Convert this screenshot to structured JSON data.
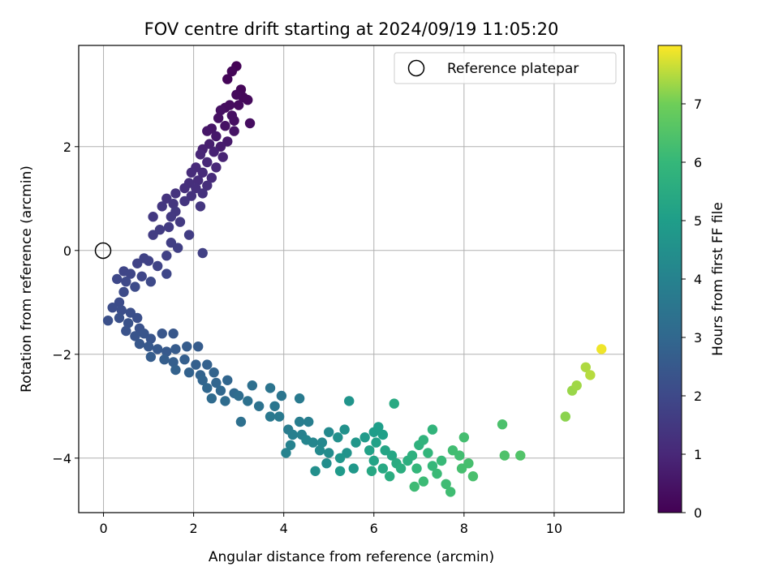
{
  "chart_data": {
    "type": "scatter",
    "title": "FOV centre drift starting at 2024/09/19 11:05:20",
    "xlabel": "Angular distance from reference (arcmin)",
    "ylabel": "Rotation from reference (arcmin)",
    "xlim": [
      -0.55,
      11.55
    ],
    "ylim": [
      -5.05,
      3.95
    ],
    "xticks": [
      0,
      2,
      4,
      6,
      8,
      10
    ],
    "yticks": [
      -4,
      -2,
      0,
      2
    ],
    "grid": true,
    "legend": {
      "position": "top-right",
      "entries": [
        "Reference platepar"
      ]
    },
    "reference_point": {
      "x": 0,
      "y": 0,
      "label": "Reference platepar"
    },
    "colorbar": {
      "label": "Hours from first FF file",
      "colormap": "viridis",
      "range": [
        0,
        8
      ],
      "ticks": [
        0,
        1,
        2,
        3,
        4,
        5,
        6,
        7
      ]
    },
    "points": [
      [
        2.95,
        3.55,
        0.05
      ],
      [
        2.75,
        3.3,
        0.1
      ],
      [
        2.85,
        3.45,
        0.12
      ],
      [
        3.05,
        3.1,
        0.15
      ],
      [
        3.1,
        2.95,
        0.18
      ],
      [
        3.2,
        2.9,
        0.2
      ],
      [
        2.95,
        3.0,
        0.22
      ],
      [
        3.0,
        2.8,
        0.25
      ],
      [
        2.8,
        2.8,
        0.28
      ],
      [
        2.7,
        2.75,
        0.3
      ],
      [
        3.25,
        2.45,
        0.32
      ],
      [
        2.9,
        2.5,
        0.35
      ],
      [
        2.85,
        2.6,
        0.38
      ],
      [
        2.6,
        2.7,
        0.4
      ],
      [
        2.55,
        2.55,
        0.42
      ],
      [
        2.7,
        2.4,
        0.45
      ],
      [
        2.9,
        2.3,
        0.48
      ],
      [
        2.4,
        2.35,
        0.5
      ],
      [
        2.3,
        2.3,
        0.55
      ],
      [
        2.5,
        2.2,
        0.6
      ],
      [
        2.75,
        2.1,
        0.65
      ],
      [
        2.6,
        2.0,
        0.7
      ],
      [
        2.35,
        2.05,
        0.75
      ],
      [
        2.2,
        1.95,
        0.8
      ],
      [
        2.45,
        1.9,
        0.85
      ],
      [
        2.65,
        1.8,
        0.9
      ],
      [
        2.15,
        1.85,
        0.95
      ],
      [
        2.3,
        1.7,
        1.0
      ],
      [
        2.5,
        1.6,
        1.02
      ],
      [
        2.05,
        1.6,
        1.05
      ],
      [
        2.2,
        1.5,
        1.08
      ],
      [
        2.4,
        1.4,
        1.1
      ],
      [
        1.95,
        1.5,
        1.12
      ],
      [
        2.1,
        1.35,
        1.15
      ],
      [
        2.3,
        1.25,
        1.18
      ],
      [
        1.9,
        1.3,
        1.2
      ],
      [
        2.05,
        1.2,
        1.22
      ],
      [
        1.8,
        1.2,
        1.25
      ],
      [
        2.2,
        1.1,
        1.28
      ],
      [
        1.95,
        1.05,
        1.3
      ],
      [
        1.6,
        1.1,
        1.32
      ],
      [
        1.4,
        1.0,
        1.35
      ],
      [
        1.55,
        0.9,
        1.38
      ],
      [
        1.8,
        0.95,
        1.4
      ],
      [
        2.15,
        0.85,
        1.42
      ],
      [
        1.3,
        0.85,
        1.45
      ],
      [
        1.6,
        0.75,
        1.48
      ],
      [
        1.5,
        0.65,
        1.5
      ],
      [
        1.1,
        0.65,
        1.52
      ],
      [
        1.7,
        0.55,
        1.55
      ],
      [
        1.45,
        0.45,
        1.58
      ],
      [
        1.25,
        0.4,
        1.6
      ],
      [
        1.1,
        0.3,
        1.62
      ],
      [
        1.9,
        0.3,
        1.65
      ],
      [
        1.5,
        0.15,
        1.68
      ],
      [
        1.65,
        0.05,
        1.7
      ],
      [
        2.2,
        -0.05,
        1.72
      ],
      [
        1.4,
        -0.1,
        1.75
      ],
      [
        0.9,
        -0.15,
        1.78
      ],
      [
        1.0,
        -0.2,
        1.8
      ],
      [
        0.75,
        -0.25,
        1.82
      ],
      [
        1.2,
        -0.3,
        1.85
      ],
      [
        0.45,
        -0.4,
        1.88
      ],
      [
        0.6,
        -0.45,
        1.9
      ],
      [
        0.85,
        -0.5,
        1.92
      ],
      [
        1.4,
        -0.45,
        1.95
      ],
      [
        0.3,
        -0.55,
        1.98
      ],
      [
        0.5,
        -0.6,
        2.0
      ],
      [
        1.05,
        -0.6,
        2.02
      ],
      [
        0.7,
        -0.7,
        2.05
      ],
      [
        0.45,
        -0.8,
        2.08
      ],
      [
        0.35,
        -1.0,
        2.1
      ],
      [
        0.2,
        -1.1,
        2.12
      ],
      [
        0.4,
        -1.15,
        2.15
      ],
      [
        0.6,
        -1.2,
        2.18
      ],
      [
        0.75,
        -1.3,
        2.2
      ],
      [
        0.1,
        -1.35,
        2.22
      ],
      [
        0.35,
        -1.3,
        2.25
      ],
      [
        0.55,
        -1.4,
        2.28
      ],
      [
        0.8,
        -1.5,
        2.3
      ],
      [
        0.5,
        -1.55,
        2.32
      ],
      [
        0.7,
        -1.65,
        2.35
      ],
      [
        0.9,
        -1.6,
        2.38
      ],
      [
        1.05,
        -1.7,
        2.4
      ],
      [
        1.3,
        -1.6,
        2.42
      ],
      [
        1.55,
        -1.6,
        2.45
      ],
      [
        0.8,
        -1.8,
        2.48
      ],
      [
        1.0,
        -1.85,
        2.5
      ],
      [
        1.2,
        -1.9,
        2.52
      ],
      [
        1.4,
        -1.95,
        2.55
      ],
      [
        1.6,
        -1.9,
        2.58
      ],
      [
        1.85,
        -1.85,
        2.6
      ],
      [
        2.1,
        -1.85,
        2.62
      ],
      [
        1.05,
        -2.05,
        2.65
      ],
      [
        1.35,
        -2.1,
        2.68
      ],
      [
        1.55,
        -2.15,
        2.7
      ],
      [
        1.8,
        -2.1,
        2.72
      ],
      [
        2.05,
        -2.2,
        2.75
      ],
      [
        2.3,
        -2.2,
        2.78
      ],
      [
        1.6,
        -2.3,
        2.8
      ],
      [
        1.9,
        -2.35,
        2.82
      ],
      [
        2.15,
        -2.4,
        2.85
      ],
      [
        2.45,
        -2.35,
        2.88
      ],
      [
        2.2,
        -2.5,
        2.9
      ],
      [
        2.5,
        -2.55,
        2.92
      ],
      [
        2.75,
        -2.5,
        2.95
      ],
      [
        2.3,
        -2.65,
        2.98
      ],
      [
        2.6,
        -2.7,
        3.0
      ],
      [
        2.9,
        -2.75,
        3.05
      ],
      [
        2.4,
        -2.85,
        3.1
      ],
      [
        2.7,
        -2.9,
        3.15
      ],
      [
        3.0,
        -2.8,
        3.2
      ],
      [
        3.3,
        -2.6,
        3.25
      ],
      [
        3.05,
        -3.3,
        3.3
      ],
      [
        3.2,
        -2.9,
        3.35
      ],
      [
        3.45,
        -3.0,
        3.4
      ],
      [
        3.7,
        -2.65,
        3.45
      ],
      [
        3.95,
        -2.8,
        3.5
      ],
      [
        3.8,
        -3.0,
        3.55
      ],
      [
        3.7,
        -3.2,
        3.6
      ],
      [
        3.9,
        -3.2,
        3.65
      ],
      [
        4.35,
        -2.85,
        3.7
      ],
      [
        4.1,
        -3.45,
        3.75
      ],
      [
        4.35,
        -3.3,
        3.8
      ],
      [
        4.55,
        -3.3,
        3.85
      ],
      [
        4.2,
        -3.55,
        3.9
      ],
      [
        4.4,
        -3.55,
        3.95
      ],
      [
        4.15,
        -3.75,
        4.0
      ],
      [
        4.05,
        -3.9,
        4.05
      ],
      [
        4.5,
        -3.65,
        4.1
      ],
      [
        4.65,
        -3.7,
        4.15
      ],
      [
        4.85,
        -3.7,
        4.2
      ],
      [
        5.0,
        -3.5,
        4.25
      ],
      [
        4.8,
        -3.85,
        4.3
      ],
      [
        5.0,
        -3.9,
        4.35
      ],
      [
        4.95,
        -4.1,
        4.4
      ],
      [
        4.7,
        -4.25,
        4.45
      ],
      [
        5.2,
        -3.6,
        4.5
      ],
      [
        5.35,
        -3.45,
        4.55
      ],
      [
        5.4,
        -3.9,
        4.6
      ],
      [
        5.45,
        -2.9,
        4.65
      ],
      [
        5.25,
        -4.0,
        4.7
      ],
      [
        5.6,
        -3.7,
        4.75
      ],
      [
        5.55,
        -4.2,
        4.8
      ],
      [
        5.25,
        -4.25,
        4.85
      ],
      [
        5.8,
        -3.6,
        4.9
      ],
      [
        6.0,
        -3.5,
        4.95
      ],
      [
        6.1,
        -3.4,
        5.0
      ],
      [
        6.2,
        -3.55,
        5.05
      ],
      [
        6.05,
        -3.7,
        5.1
      ],
      [
        5.9,
        -3.85,
        5.15
      ],
      [
        6.0,
        -4.05,
        5.2
      ],
      [
        6.25,
        -3.85,
        5.25
      ],
      [
        6.4,
        -3.95,
        5.3
      ],
      [
        5.95,
        -4.25,
        5.35
      ],
      [
        6.2,
        -4.2,
        5.4
      ],
      [
        6.45,
        -2.95,
        5.45
      ],
      [
        6.5,
        -4.1,
        5.5
      ],
      [
        6.35,
        -4.35,
        5.55
      ],
      [
        6.6,
        -4.2,
        5.6
      ],
      [
        6.75,
        -4.05,
        5.65
      ],
      [
        6.85,
        -3.95,
        5.7
      ],
      [
        7.0,
        -3.75,
        5.75
      ],
      [
        7.1,
        -3.65,
        5.8
      ],
      [
        7.3,
        -3.45,
        5.85
      ],
      [
        7.2,
        -3.9,
        5.9
      ],
      [
        6.95,
        -4.2,
        5.95
      ],
      [
        7.3,
        -4.15,
        6.0
      ],
      [
        7.5,
        -4.05,
        6.05
      ],
      [
        7.4,
        -4.3,
        6.1
      ],
      [
        7.1,
        -4.45,
        6.12
      ],
      [
        6.9,
        -4.55,
        6.15
      ],
      [
        7.6,
        -4.5,
        6.18
      ],
      [
        7.7,
        -4.65,
        6.2
      ],
      [
        7.75,
        -3.85,
        6.22
      ],
      [
        7.9,
        -3.95,
        6.25
      ],
      [
        8.0,
        -3.6,
        6.28
      ],
      [
        7.95,
        -4.2,
        6.3
      ],
      [
        8.1,
        -4.1,
        6.32
      ],
      [
        8.2,
        -4.35,
        6.35
      ],
      [
        8.85,
        -3.35,
        6.4
      ],
      [
        8.9,
        -3.95,
        6.45
      ],
      [
        9.25,
        -3.95,
        6.5
      ],
      [
        10.25,
        -3.2,
        7.2
      ],
      [
        10.4,
        -2.7,
        7.3
      ],
      [
        10.5,
        -2.6,
        7.35
      ],
      [
        10.7,
        -2.25,
        7.45
      ],
      [
        10.8,
        -2.4,
        7.5
      ],
      [
        11.05,
        -1.9,
        7.9
      ]
    ]
  }
}
